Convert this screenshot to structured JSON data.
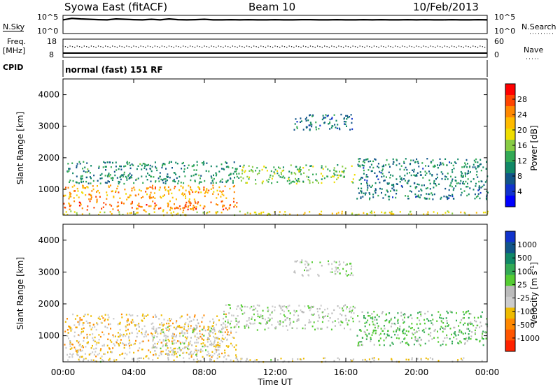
{
  "header": {
    "station": "Syowa East (fitACF)",
    "beam": "Beam 10",
    "date": "10/Feb/2013"
  },
  "noise_panel": {
    "left_label": "N.Sky",
    "left_ticks": [
      "10^5",
      "10^0"
    ],
    "right_label": "N.Search",
    "right_ticks": [
      "10^5",
      "10^0"
    ]
  },
  "freq_panel": {
    "left_label_1": "Freq.",
    "left_label_2": "[MHz]",
    "left_ticks": [
      "18",
      "8"
    ],
    "right_label": "Nave",
    "right_ticks": [
      "60",
      "0"
    ]
  },
  "cpid": {
    "label": "CPID",
    "value": "normal (fast) 151 RF"
  },
  "power_panel": {
    "ylabel": "Slant Range [km]",
    "yticks": [
      "4000",
      "3000",
      "2000",
      "1000"
    ],
    "colorbar_label": "Power [dB]",
    "colorbar_ticks": [
      "28",
      "24",
      "20",
      "16",
      "12",
      "8",
      "4"
    ],
    "colors": [
      "#ff0000",
      "#ff4400",
      "#ff8800",
      "#ffbb00",
      "#eedd00",
      "#88cc44",
      "#33aa55",
      "#118866",
      "#115588",
      "#1133cc",
      "#0000ff"
    ]
  },
  "velocity_panel": {
    "ylabel": "Slant Range [km]",
    "yticks": [
      "4000",
      "3000",
      "2000",
      "1000"
    ],
    "colorbar_label": "Velocity [m s",
    "colorbar_label_sup": "-1",
    "colorbar_label_end": "]",
    "colorbar_ticks": [
      "1000",
      "500",
      "100",
      "25",
      "-25",
      "-100",
      "-500",
      "-1000"
    ],
    "colors": [
      "#1133cc",
      "#115588",
      "#118866",
      "#33aa55",
      "#55cc33",
      "#bbbbbb",
      "#cccccc",
      "#eebb00",
      "#ff8800",
      "#ff5500",
      "#ff2200"
    ]
  },
  "xaxis": {
    "ticks": [
      "00:00",
      "04:00",
      "08:00",
      "12:00",
      "16:00",
      "20:00",
      "00:00"
    ],
    "label": "Time UT"
  },
  "chart_data": [
    {
      "type": "line",
      "name": "noise",
      "ylabel": "N.Sky",
      "log_scale": true,
      "ylim": [
        1,
        100000
      ],
      "x_hours": [
        0,
        0.5,
        1,
        1.5,
        2,
        2.5,
        3,
        3.5,
        4,
        4.5,
        5,
        5.5,
        6,
        6.5,
        7,
        7.5,
        8,
        8.5,
        9,
        9.5,
        10,
        10.5,
        11,
        11.5,
        12,
        12.5,
        13,
        13.5,
        14,
        14.5,
        15,
        15.5,
        16,
        16.5,
        17,
        17.5,
        18,
        18.5,
        19,
        19.5,
        20,
        20.5,
        21,
        21.5,
        22,
        22.5,
        23,
        23.5,
        24
      ],
      "values": [
        10000,
        30000,
        20000,
        15000,
        12000,
        10000,
        20000,
        15000,
        12000,
        10000,
        15000,
        10000,
        20000,
        12000,
        10000,
        12000,
        15000,
        10000,
        10000,
        12000,
        10000,
        12000,
        10000,
        10000,
        12000,
        10000,
        10000,
        12000,
        12000,
        10000,
        10000,
        12000,
        10000,
        10000,
        12000,
        10000,
        12000,
        10000,
        10000,
        12000,
        10000,
        12000,
        10000,
        10000,
        12000,
        10000,
        10000,
        12000,
        10000
      ]
    },
    {
      "type": "scatter",
      "name": "frequency",
      "ylabel": "Freq. [MHz]",
      "ylim": [
        8,
        18
      ],
      "x_hours": [
        0,
        2,
        4,
        6,
        8,
        10,
        12,
        14,
        16,
        18,
        20,
        22,
        24
      ],
      "values": [
        12,
        12,
        12,
        12,
        12,
        12,
        12,
        12,
        12,
        12,
        12,
        12,
        12
      ]
    },
    {
      "type": "heatmap",
      "name": "power",
      "xlim_hours": [
        0,
        24
      ],
      "ylim_km": [
        180,
        4500
      ],
      "zlabel": "Power [dB]",
      "zlim": [
        0,
        30
      ],
      "regions": [
        {
          "t0": 0.0,
          "t1": 9.8,
          "r0": 700,
          "r1": 1150,
          "value": 22
        },
        {
          "t0": 0.0,
          "t1": 9.8,
          "r0": 350,
          "r1": 650,
          "value": 24
        },
        {
          "t0": 0.0,
          "t1": 24.0,
          "r0": 200,
          "r1": 330,
          "value": 18
        },
        {
          "t0": 0.2,
          "t1": 10.0,
          "r0": 1200,
          "r1": 1900,
          "value": 10
        },
        {
          "t0": 10.0,
          "t1": 16.5,
          "r0": 1200,
          "r1": 1800,
          "value": 14
        },
        {
          "t0": 13.0,
          "t1": 16.4,
          "r0": 2900,
          "r1": 3400,
          "value": 8
        },
        {
          "t0": 16.6,
          "t1": 24.0,
          "r0": 700,
          "r1": 2000,
          "value": 9
        }
      ]
    },
    {
      "type": "heatmap",
      "name": "velocity",
      "xlim_hours": [
        0,
        24
      ],
      "ylim_km": [
        180,
        4500
      ],
      "zlabel": "Velocity [m s-1]",
      "zlim": [
        -1000,
        1000
      ],
      "regions": [
        {
          "t0": 0.0,
          "t1": 9.8,
          "r0": 350,
          "r1": 1700,
          "value": -300
        },
        {
          "t0": 5.0,
          "t1": 9.0,
          "r0": 400,
          "r1": 1300,
          "value": -60
        },
        {
          "t0": 0.0,
          "t1": 24.0,
          "r0": 200,
          "r1": 330,
          "value": -150
        },
        {
          "t0": 9.0,
          "t1": 16.5,
          "r0": 1200,
          "r1": 2000,
          "value": 0
        },
        {
          "t0": 13.0,
          "t1": 16.4,
          "r0": 2900,
          "r1": 3400,
          "value": 0
        },
        {
          "t0": 16.6,
          "t1": 24.0,
          "r0": 700,
          "r1": 1800,
          "value": 200
        }
      ]
    }
  ]
}
